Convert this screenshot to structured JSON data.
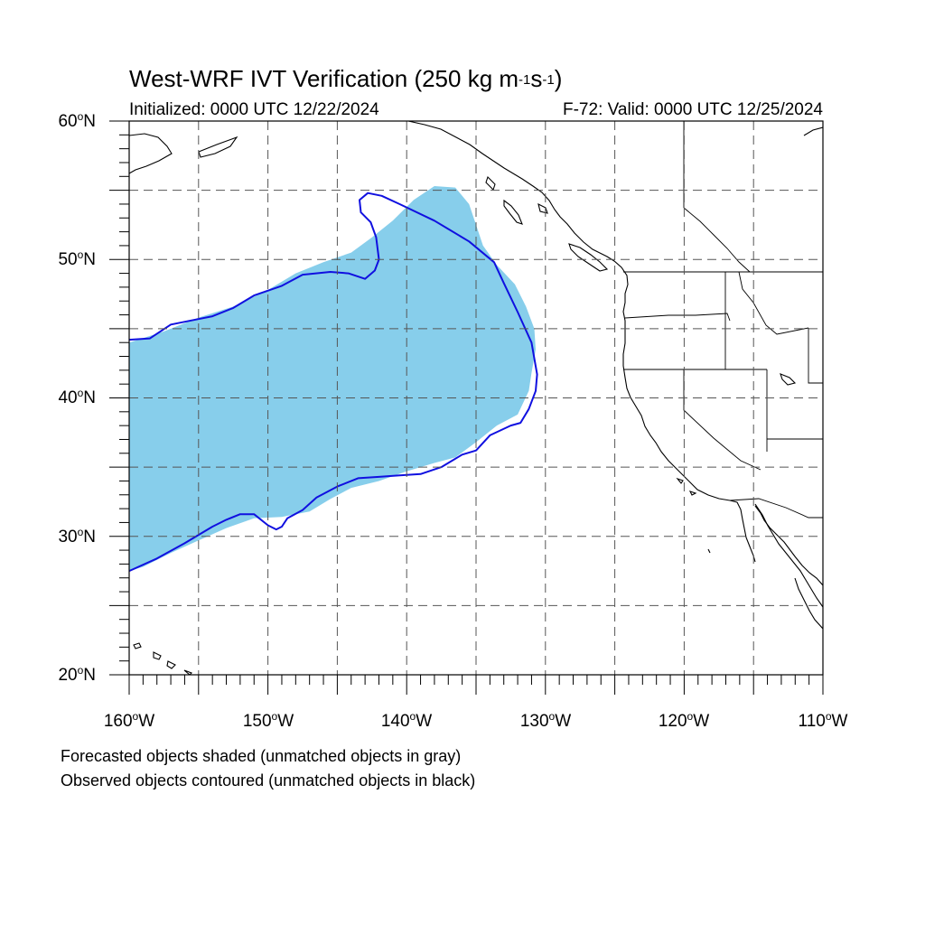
{
  "title_main": "West-WRF IVT Verification (250 kg m",
  "title_exp1": "-1",
  "title_mid": "s",
  "title_exp2": "-1",
  "title_end": ")",
  "subtitle_left": "Initialized: 0000 UTC 12/22/2024",
  "subtitle_right": "F-72: Valid: 0000 UTC 12/25/2024",
  "lat_labels": [
    {
      "num": "60",
      "deg": "o",
      "hem": "N"
    },
    {
      "num": "50",
      "deg": "o",
      "hem": "N"
    },
    {
      "num": "40",
      "deg": "o",
      "hem": "N"
    },
    {
      "num": "30",
      "deg": "o",
      "hem": "N"
    },
    {
      "num": "20",
      "deg": "o",
      "hem": "N"
    }
  ],
  "lon_labels": [
    {
      "num": "160",
      "deg": "o",
      "hem": "W"
    },
    {
      "num": "150",
      "deg": "o",
      "hem": "W"
    },
    {
      "num": "140",
      "deg": "o",
      "hem": "W"
    },
    {
      "num": "130",
      "deg": "o",
      "hem": "W"
    },
    {
      "num": "120",
      "deg": "o",
      "hem": "W"
    },
    {
      "num": "110",
      "deg": "o",
      "hem": "W"
    }
  ],
  "footnote_1": "Forecasted objects shaded (unmatched objects in gray)",
  "footnote_2": "Observed objects contoured (unmatched objects in black)",
  "map_extent": {
    "lon_min": -160,
    "lon_max": -110,
    "lat_min": 20,
    "lat_max": 60
  },
  "colors": {
    "forecast_fill": "#87CEEB",
    "observed_contour": "#1010E0",
    "coastline": "#000000",
    "grid": "#555555"
  },
  "forecast_object": [
    [
      -160.0,
      44.0
    ],
    [
      -157.5,
      44.8
    ],
    [
      -155.0,
      45.8
    ],
    [
      -152.5,
      46.6
    ],
    [
      -150.0,
      47.8
    ],
    [
      -148.0,
      49.0
    ],
    [
      -146.0,
      49.8
    ],
    [
      -144.0,
      50.5
    ],
    [
      -142.5,
      51.6
    ],
    [
      -141.0,
      52.8
    ],
    [
      -139.5,
      54.3
    ],
    [
      -138.0,
      55.3
    ],
    [
      -136.5,
      55.2
    ],
    [
      -135.5,
      54.0
    ],
    [
      -135.0,
      52.5
    ],
    [
      -134.5,
      51.0
    ],
    [
      -133.5,
      49.6
    ],
    [
      -132.2,
      48.2
    ],
    [
      -131.4,
      46.6
    ],
    [
      -130.8,
      45.0
    ],
    [
      -130.7,
      43.5
    ],
    [
      -131.0,
      41.8
    ],
    [
      -131.2,
      40.5
    ],
    [
      -132.0,
      38.8
    ],
    [
      -133.5,
      38.0
    ],
    [
      -135.0,
      36.8
    ],
    [
      -136.5,
      35.7
    ],
    [
      -138.0,
      35.3
    ],
    [
      -140.0,
      34.7
    ],
    [
      -142.0,
      34.0
    ],
    [
      -144.0,
      33.5
    ],
    [
      -145.5,
      32.7
    ],
    [
      -147.0,
      31.8
    ],
    [
      -149.0,
      31.4
    ],
    [
      -151.0,
      31.3
    ],
    [
      -153.0,
      30.6
    ],
    [
      -155.0,
      29.7
    ],
    [
      -157.0,
      28.8
    ],
    [
      -159.0,
      27.8
    ],
    [
      -160.0,
      27.5
    ]
  ],
  "observed_object": [
    [
      -160.0,
      44.2
    ],
    [
      -158.5,
      44.3
    ],
    [
      -157.0,
      45.3
    ],
    [
      -155.5,
      45.6
    ],
    [
      -154.0,
      45.9
    ],
    [
      -152.5,
      46.5
    ],
    [
      -151.0,
      47.4
    ],
    [
      -149.0,
      48.1
    ],
    [
      -147.5,
      48.9
    ],
    [
      -145.5,
      49.1
    ],
    [
      -144.2,
      49.0
    ],
    [
      -143.0,
      48.6
    ],
    [
      -142.3,
      49.2
    ],
    [
      -142.0,
      50.0
    ],
    [
      -142.2,
      51.6
    ],
    [
      -142.6,
      52.7
    ],
    [
      -143.3,
      53.4
    ],
    [
      -143.4,
      54.3
    ],
    [
      -142.8,
      54.8
    ],
    [
      -141.8,
      54.6
    ],
    [
      -140.5,
      54.0
    ],
    [
      -138.0,
      52.8
    ],
    [
      -135.5,
      51.3
    ],
    [
      -133.7,
      49.8
    ],
    [
      -133.0,
      48.3
    ],
    [
      -132.0,
      46.2
    ],
    [
      -131.0,
      44.0
    ],
    [
      -130.6,
      41.7
    ],
    [
      -130.7,
      40.5
    ],
    [
      -131.2,
      39.2
    ],
    [
      -131.8,
      38.2
    ],
    [
      -132.5,
      38.0
    ],
    [
      -134.0,
      37.3
    ],
    [
      -135.0,
      36.2
    ],
    [
      -136.0,
      35.9
    ],
    [
      -137.5,
      35.0
    ],
    [
      -139.0,
      34.5
    ],
    [
      -140.5,
      34.4
    ],
    [
      -142.0,
      34.3
    ],
    [
      -143.5,
      34.2
    ],
    [
      -145.0,
      33.6
    ],
    [
      -146.5,
      32.8
    ],
    [
      -147.5,
      31.9
    ],
    [
      -148.6,
      31.3
    ],
    [
      -148.8,
      31.0
    ],
    [
      -149.0,
      30.7
    ],
    [
      -149.4,
      30.5
    ],
    [
      -150.0,
      30.8
    ],
    [
      -151.0,
      31.6
    ],
    [
      -152.0,
      31.6
    ],
    [
      -153.0,
      31.2
    ],
    [
      -154.0,
      30.7
    ],
    [
      -156.0,
      29.5
    ],
    [
      -158.0,
      28.4
    ],
    [
      -160.0,
      27.5
    ]
  ]
}
